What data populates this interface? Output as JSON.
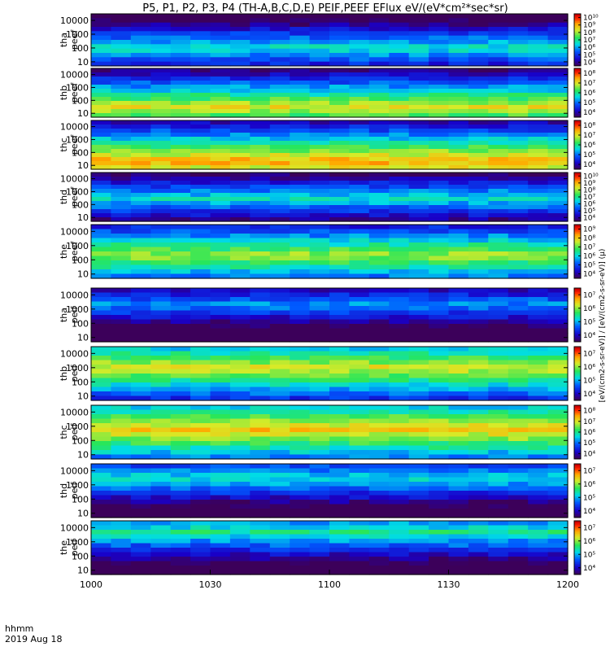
{
  "chart_data": {
    "type": "heatmap",
    "title": "P5, P1, P2, P3, P4 (TH-A,B,C,D,E) PEIF,PEEF EFlux eV/(eV*cm²*sec*sr)",
    "x_axis": {
      "ticks": [
        "1000",
        "1030",
        "1100",
        "1130",
        "1200"
      ],
      "range": [
        "10:00",
        "12:00"
      ],
      "corner_label_1": "hhmm",
      "corner_label_2": "2019 Aug 18"
    },
    "y_axis": {
      "scale": "log",
      "units": "eV",
      "ticks": [
        "10",
        "100",
        "1000",
        "10000"
      ],
      "range": [
        5,
        30000
      ]
    },
    "colorbar_label": "[eV/(cm2-s-sr-eV)] / [eV/(cm2-s-sr-eV)] (μ)",
    "panels": [
      {
        "name": "tha peef",
        "line1": "tha",
        "line2": "peef",
        "cb_ticks": [
          "10⁴",
          "10⁵",
          "10⁶",
          "10⁷",
          "10⁸",
          "10⁹",
          "10¹⁰"
        ],
        "band_eV": 100,
        "level": 0.46
      },
      {
        "name": "thb peef",
        "line1": "thb",
        "line2": "peef",
        "cb_ticks": [
          "10⁴",
          "10⁵",
          "10⁶",
          "10⁷",
          "10⁸"
        ],
        "band_eV": 30,
        "level": 0.72
      },
      {
        "name": "thc peef",
        "line1": "thc",
        "line2": "peef",
        "cb_ticks": [
          "10⁴",
          "10⁵",
          "10⁶",
          "10⁷",
          "10⁸"
        ],
        "band_eV": 20,
        "level": 0.82
      },
      {
        "name": "thd peef",
        "line1": "thd",
        "line2": "peef",
        "cb_ticks": [
          "10⁴",
          "10⁵",
          "10⁶",
          "10⁷",
          "10⁸",
          "10⁹",
          "10¹⁰"
        ],
        "band_eV": 300,
        "level": 0.45
      },
      {
        "name": "the peef",
        "line1": "the",
        "line2": "peef",
        "cb_ticks": [
          "10⁴",
          "10⁵",
          "10⁶",
          "10⁷",
          "10⁸",
          "10⁹"
        ],
        "band_eV": 200,
        "level": 0.66
      },
      {
        "name": "tha peif",
        "line1": "tha",
        "line2": "peif",
        "cb_ticks": [
          "10⁴",
          "10⁵",
          "10⁶",
          "10⁷"
        ],
        "band_eV": 2000,
        "level": 0.35
      },
      {
        "name": "thb peif",
        "line1": "thb",
        "line2": "peif",
        "cb_ticks": [
          "10⁴",
          "10⁵",
          "10⁶",
          "10⁷"
        ],
        "band_eV": 1000,
        "level": 0.72
      },
      {
        "name": "thc peif",
        "line1": "thc",
        "line2": "peif",
        "cb_ticks": [
          "10⁴",
          "10⁵",
          "10⁶",
          "10⁷",
          "10⁸"
        ],
        "band_eV": 600,
        "level": 0.78
      },
      {
        "name": "thd peif",
        "line1": "thd",
        "line2": "peif",
        "cb_ticks": [
          "10⁴",
          "10⁵",
          "10⁶",
          "10⁷"
        ],
        "band_eV": 3000,
        "level": 0.45
      },
      {
        "name": "the peif",
        "line1": "the",
        "line2": "peif",
        "cb_ticks": [
          "10⁴",
          "10⁵",
          "10⁶",
          "10⁷"
        ],
        "band_eV": 5000,
        "level": 0.5
      }
    ]
  }
}
